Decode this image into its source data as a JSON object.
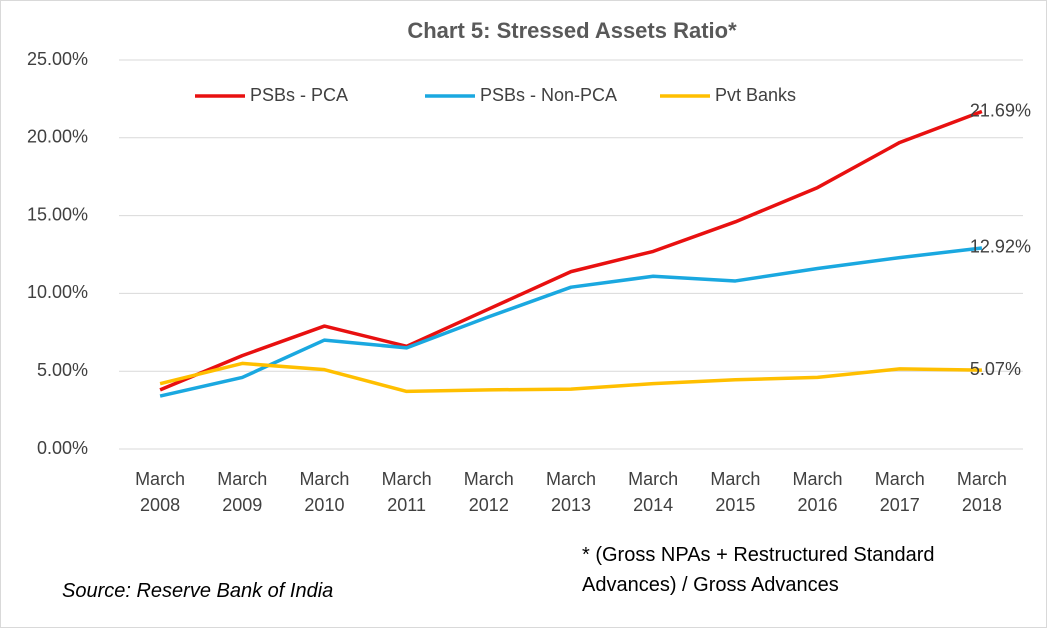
{
  "chart_data": {
    "type": "line",
    "title": "Chart 5: Stressed Assets Ratio*",
    "categories": [
      "March 2008",
      "March 2009",
      "March 2010",
      "March 2011",
      "March 2012",
      "March 2013",
      "March 2014",
      "March 2015",
      "March 2016",
      "March 2017",
      "March 2018"
    ],
    "series": [
      {
        "name": "PSBs - PCA",
        "color": "#e81010",
        "values": [
          3.8,
          6.0,
          7.9,
          6.6,
          9.0,
          11.4,
          12.7,
          14.6,
          16.8,
          19.7,
          21.69
        ],
        "value_labels": [
          null,
          null,
          null,
          null,
          null,
          null,
          null,
          null,
          null,
          null,
          "21.69%"
        ]
      },
      {
        "name": "PSBs - Non-PCA",
        "color": "#1aa8e0",
        "values": [
          3.4,
          4.6,
          7.0,
          6.5,
          8.5,
          10.4,
          11.1,
          10.8,
          11.6,
          12.3,
          12.92
        ],
        "value_labels": [
          null,
          null,
          null,
          null,
          null,
          null,
          null,
          null,
          null,
          null,
          "12.92%"
        ]
      },
      {
        "name": "Pvt Banks",
        "color": "#ffbf00",
        "values": [
          4.2,
          5.5,
          5.1,
          3.7,
          3.8,
          3.85,
          4.2,
          4.45,
          4.6,
          5.15,
          5.07
        ],
        "value_labels": [
          null,
          null,
          null,
          null,
          null,
          null,
          null,
          null,
          null,
          null,
          "5.07%"
        ]
      }
    ],
    "ylim": [
      0,
      25
    ],
    "yticks": [
      {
        "value": 0,
        "label": "0.00%"
      },
      {
        "value": 5,
        "label": "5.00%"
      },
      {
        "value": 10,
        "label": "10.00%"
      },
      {
        "value": 15,
        "label": "15.00%"
      },
      {
        "value": 20,
        "label": "20.00%"
      },
      {
        "value": 25,
        "label": "25.00%"
      }
    ],
    "grid": true,
    "legend": "top",
    "source": "Source: Reserve Bank of India",
    "footnote": "* (Gross NPAs + Restructured Standard Advances) / Gross Advances"
  }
}
